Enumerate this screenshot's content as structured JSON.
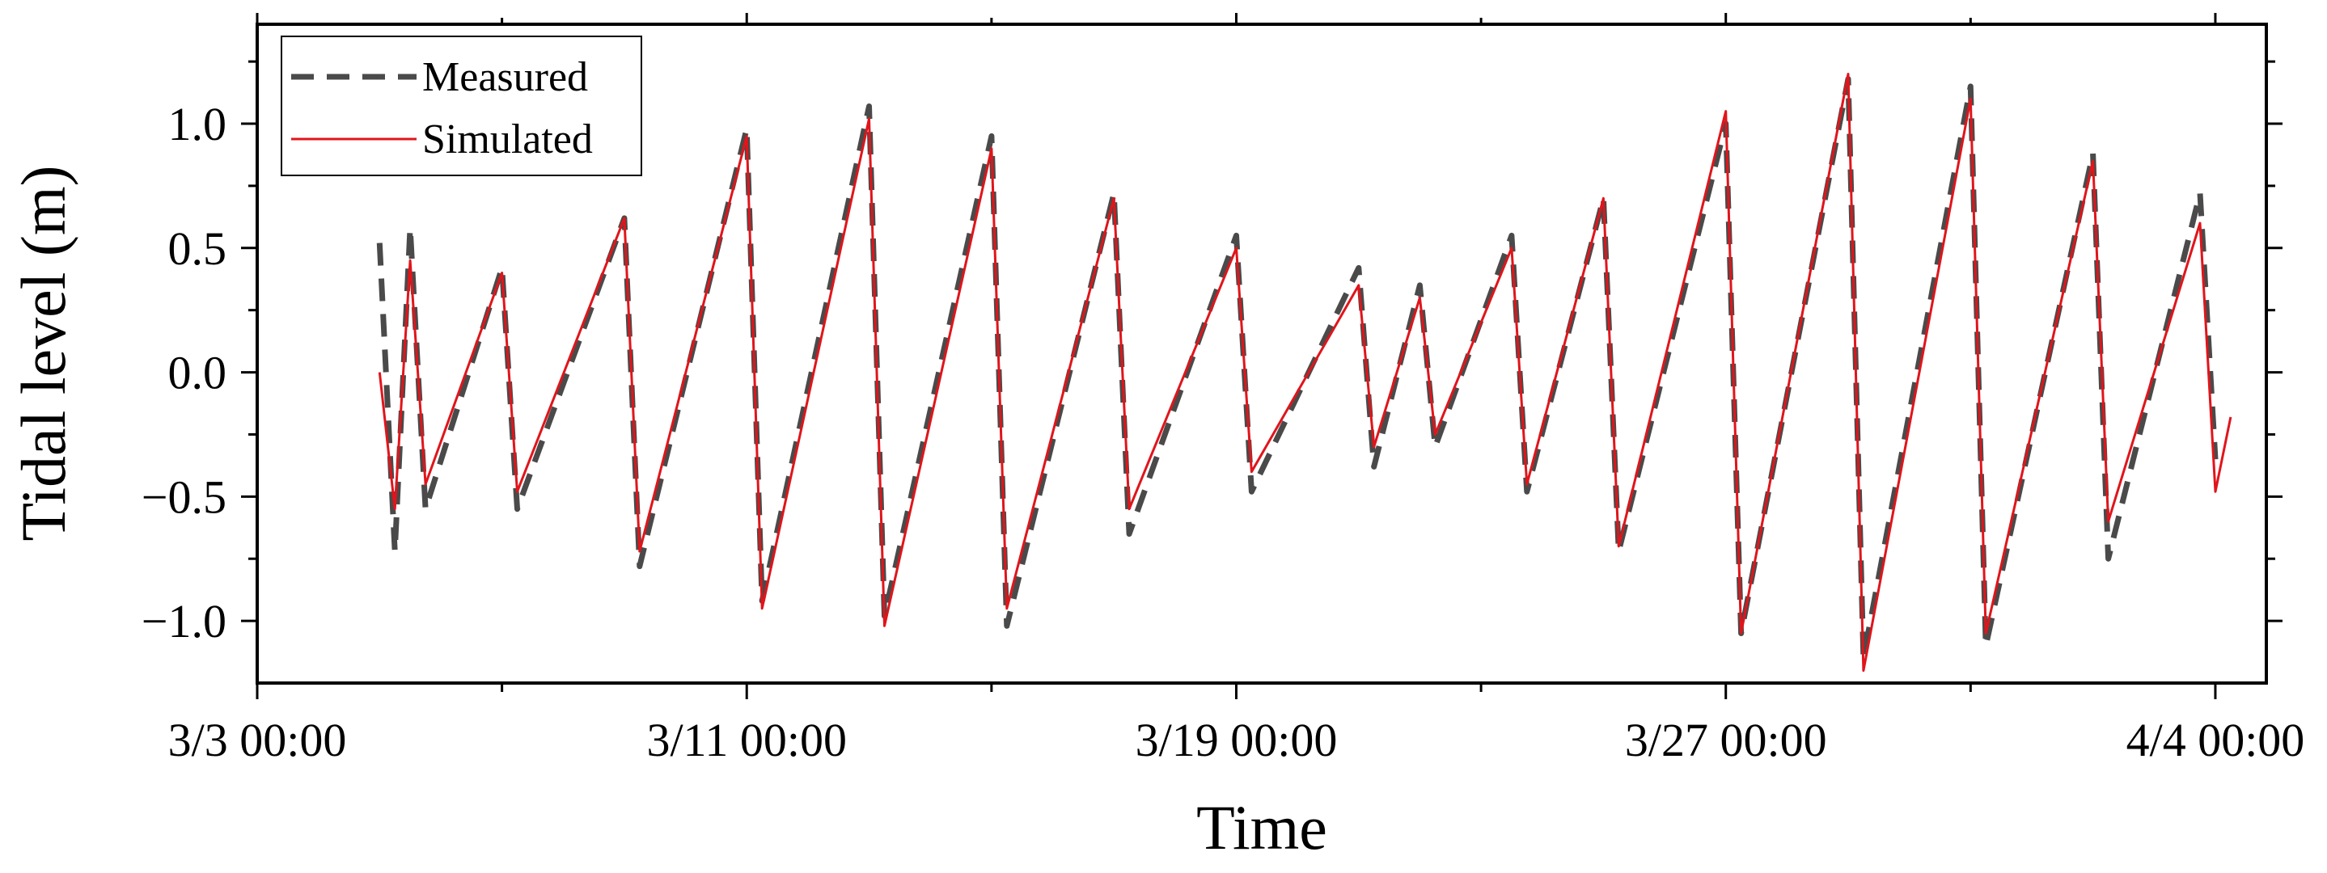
{
  "chart_data": {
    "type": "line",
    "xlabel": "Time",
    "ylabel": "Tidal level (m)",
    "xlim": [
      "2024-03-03 00:00",
      "2024-04-04 20:00"
    ],
    "ylim": [
      -1.25,
      1.4
    ],
    "x_ticks": [
      {
        "value": "2024-03-03 00:00",
        "label": "3/3 00:00"
      },
      {
        "value": "2024-03-11 00:00",
        "label": "3/11 00:00"
      },
      {
        "value": "2024-03-19 00:00",
        "label": "3/19 00:00"
      },
      {
        "value": "2024-03-27 00:00",
        "label": "3/27 00:00"
      },
      {
        "value": "2024-04-04 00:00",
        "label": "4/4 00:00"
      }
    ],
    "x_minor_ticks": [
      "2024-03-07 00:00",
      "2024-03-15 00:00",
      "2024-03-23 00:00",
      "2024-03-31 00:00"
    ],
    "y_ticks": [
      {
        "value": -1.0,
        "label": "−1.0"
      },
      {
        "value": -0.5,
        "label": "−0.5"
      },
      {
        "value": 0.0,
        "label": "0.0"
      },
      {
        "value": 0.5,
        "label": "0.5"
      },
      {
        "value": 1.0,
        "label": "1.0"
      }
    ],
    "y_minor_ticks": [
      -0.75,
      -0.25,
      0.25,
      0.75,
      1.25
    ],
    "legend_position": "top-left",
    "series": [
      {
        "name": "Measured",
        "style": "dashed",
        "color": "#4a4a4a",
        "points": [
          {
            "t": "2024-03-05 00:00",
            "y": 0.52
          },
          {
            "t": "2024-03-05 06:00",
            "y": -0.72
          },
          {
            "t": "2024-03-05 12:00",
            "y": 0.58
          },
          {
            "t": "2024-03-05 18:00",
            "y": -0.55
          },
          {
            "t": "2024-03-07 00:00",
            "y": 0.42
          },
          {
            "t": "2024-03-07 06:00",
            "y": -0.55
          },
          {
            "t": "2024-03-09 00:00",
            "y": 0.62
          },
          {
            "t": "2024-03-09 06:00",
            "y": -0.78
          },
          {
            "t": "2024-03-11 00:00",
            "y": 0.98
          },
          {
            "t": "2024-03-11 06:00",
            "y": -0.92
          },
          {
            "t": "2024-03-13 00:00",
            "y": 1.07
          },
          {
            "t": "2024-03-13 06:00",
            "y": -0.98
          },
          {
            "t": "2024-03-15 00:00",
            "y": 0.95
          },
          {
            "t": "2024-03-15 06:00",
            "y": -1.02
          },
          {
            "t": "2024-03-17 00:00",
            "y": 0.72
          },
          {
            "t": "2024-03-17 06:00",
            "y": -0.65
          },
          {
            "t": "2024-03-19 00:00",
            "y": 0.55
          },
          {
            "t": "2024-03-19 06:00",
            "y": -0.48
          },
          {
            "t": "2024-03-21 00:00",
            "y": 0.42
          },
          {
            "t": "2024-03-21 06:00",
            "y": -0.38
          },
          {
            "t": "2024-03-22 00:00",
            "y": 0.35
          },
          {
            "t": "2024-03-22 06:00",
            "y": -0.3
          },
          {
            "t": "2024-03-23 12:00",
            "y": 0.55
          },
          {
            "t": "2024-03-23 18:00",
            "y": -0.48
          },
          {
            "t": "2024-03-25 00:00",
            "y": 0.7
          },
          {
            "t": "2024-03-25 06:00",
            "y": -0.72
          },
          {
            "t": "2024-03-27 00:00",
            "y": 1.0
          },
          {
            "t": "2024-03-27 06:00",
            "y": -1.05
          },
          {
            "t": "2024-03-29 00:00",
            "y": 1.18
          },
          {
            "t": "2024-03-29 06:00",
            "y": -1.15
          },
          {
            "t": "2024-03-31 00:00",
            "y": 1.15
          },
          {
            "t": "2024-03-31 06:00",
            "y": -1.1
          },
          {
            "t": "2024-04-02 00:00",
            "y": 0.88
          },
          {
            "t": "2024-04-02 06:00",
            "y": -0.75
          },
          {
            "t": "2024-04-03 18:00",
            "y": 0.72
          },
          {
            "t": "2024-04-04 00:00",
            "y": -0.35
          }
        ]
      },
      {
        "name": "Simulated",
        "style": "solid",
        "color": "#e0151b",
        "points": [
          {
            "t": "2024-03-05 00:00",
            "y": 0.0
          },
          {
            "t": "2024-03-05 06:00",
            "y": -0.55
          },
          {
            "t": "2024-03-05 12:00",
            "y": 0.45
          },
          {
            "t": "2024-03-05 18:00",
            "y": -0.45
          },
          {
            "t": "2024-03-07 00:00",
            "y": 0.4
          },
          {
            "t": "2024-03-07 06:00",
            "y": -0.48
          },
          {
            "t": "2024-03-09 00:00",
            "y": 0.62
          },
          {
            "t": "2024-03-09 06:00",
            "y": -0.72
          },
          {
            "t": "2024-03-11 00:00",
            "y": 0.95
          },
          {
            "t": "2024-03-11 06:00",
            "y": -0.95
          },
          {
            "t": "2024-03-13 00:00",
            "y": 1.02
          },
          {
            "t": "2024-03-13 06:00",
            "y": -1.02
          },
          {
            "t": "2024-03-15 00:00",
            "y": 0.9
          },
          {
            "t": "2024-03-15 06:00",
            "y": -0.95
          },
          {
            "t": "2024-03-17 00:00",
            "y": 0.7
          },
          {
            "t": "2024-03-17 06:00",
            "y": -0.55
          },
          {
            "t": "2024-03-19 00:00",
            "y": 0.5
          },
          {
            "t": "2024-03-19 06:00",
            "y": -0.4
          },
          {
            "t": "2024-03-21 00:00",
            "y": 0.35
          },
          {
            "t": "2024-03-21 06:00",
            "y": -0.3
          },
          {
            "t": "2024-03-22 00:00",
            "y": 0.3
          },
          {
            "t": "2024-03-22 06:00",
            "y": -0.25
          },
          {
            "t": "2024-03-23 12:00",
            "y": 0.5
          },
          {
            "t": "2024-03-23 18:00",
            "y": -0.45
          },
          {
            "t": "2024-03-25 00:00",
            "y": 0.7
          },
          {
            "t": "2024-03-25 06:00",
            "y": -0.7
          },
          {
            "t": "2024-03-27 00:00",
            "y": 1.05
          },
          {
            "t": "2024-03-27 06:00",
            "y": -1.05
          },
          {
            "t": "2024-03-29 00:00",
            "y": 1.2
          },
          {
            "t": "2024-03-29 06:00",
            "y": -1.2
          },
          {
            "t": "2024-03-31 00:00",
            "y": 1.1
          },
          {
            "t": "2024-03-31 06:00",
            "y": -1.05
          },
          {
            "t": "2024-04-02 00:00",
            "y": 0.85
          },
          {
            "t": "2024-04-02 06:00",
            "y": -0.6
          },
          {
            "t": "2024-04-03 18:00",
            "y": 0.6
          },
          {
            "t": "2024-04-04 00:00",
            "y": -0.48
          },
          {
            "t": "2024-04-04 06:00",
            "y": -0.18
          }
        ]
      }
    ]
  }
}
